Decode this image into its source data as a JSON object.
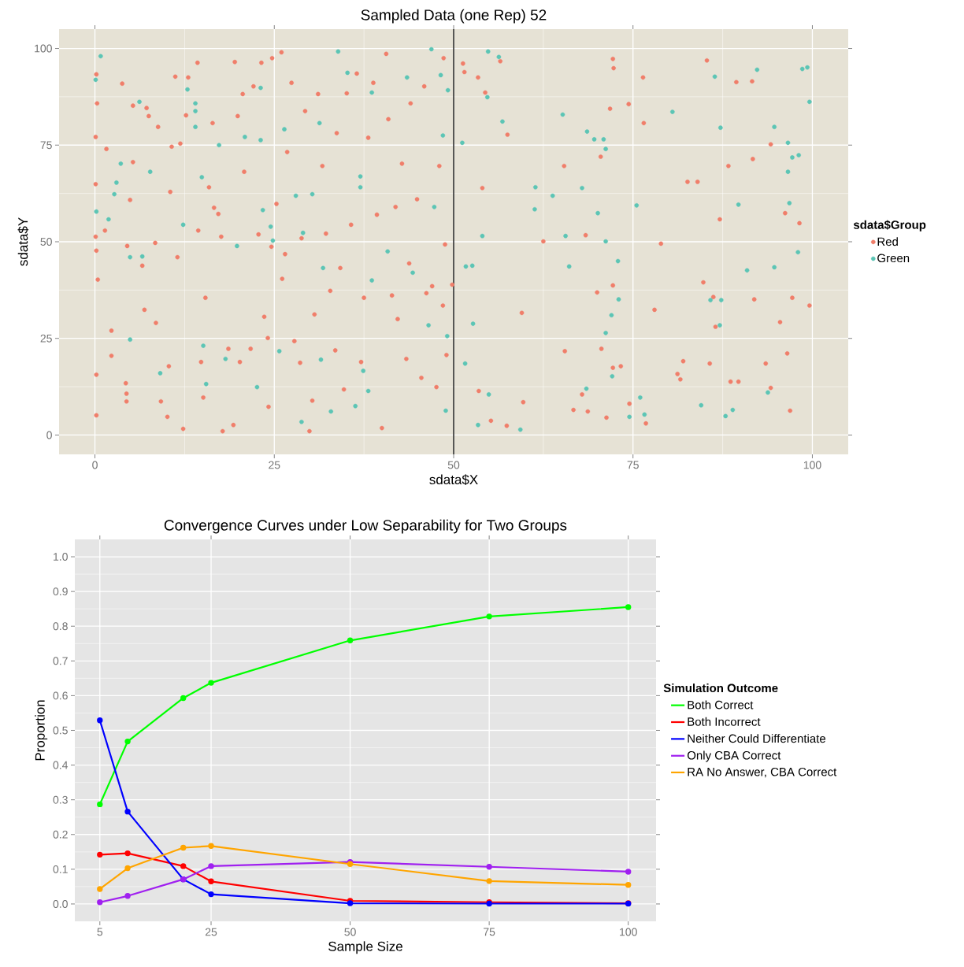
{
  "chart_data": [
    {
      "type": "scatter",
      "title": "Sampled Data (one Rep) 52",
      "xlabel": "sdata$X",
      "ylabel": "sdata$Y",
      "legend_title": "sdata$Group",
      "xlim": [
        -5,
        105
      ],
      "ylim": [
        -5,
        105
      ],
      "xticks": [
        0,
        25,
        50,
        75,
        100
      ],
      "yticks": [
        0,
        25,
        50,
        75,
        100
      ],
      "grid": true,
      "legend": "right",
      "marker": "circle",
      "ref_lines": [
        {
          "axis": "x",
          "value": 50,
          "color": "#000000"
        }
      ],
      "series": [
        {
          "name": "Red",
          "color": "#f07e6a",
          "x": [
            0.2,
            0.3,
            0.1,
            0.1,
            0.1,
            0.2,
            0.4,
            0.2,
            0.2,
            1.4,
            1.6,
            2.3,
            2.3,
            4.3,
            4.4,
            4.4,
            4.5,
            4.9,
            3.8,
            5.3,
            5.3,
            7.2,
            7.5,
            6.6,
            6.9,
            8.5,
            8.4,
            8.8,
            9.2,
            10.1,
            10.3,
            10.5,
            10.7,
            11.2,
            11.5,
            11.9,
            12.3,
            12.7,
            13.0,
            14.3,
            14.4,
            14.8,
            15.1,
            15.4,
            15.9,
            16.4,
            16.6,
            17.2,
            17.6,
            17.8,
            18.6,
            19.3,
            19.5,
            19.9,
            20.2,
            20.6,
            20.8,
            21.7,
            22.1,
            22.8,
            23.2,
            23.6,
            24.1,
            24.2,
            24.6,
            24.7,
            25.3,
            26.0,
            26.1,
            26.5,
            26.8,
            27.4,
            27.8,
            28.6,
            28.8,
            29.3,
            29.9,
            30.3,
            30.6,
            31.1,
            31.7,
            32.2,
            32.8,
            33.5,
            33.7,
            34.2,
            34.7,
            35.1,
            35.7,
            36.5,
            37.1,
            37.5,
            38.1,
            38.8,
            39.3,
            40.0,
            40.6,
            40.9,
            41.4,
            41.9,
            42.2,
            42.8,
            43.4,
            43.8,
            44.0,
            44.9,
            45.5,
            45.9,
            46.2,
            47.0,
            47.6,
            48.0,
            48.6,
            48.8,
            49.0,
            48.5,
            49.8,
            51.3,
            51.5,
            53.4,
            54.4,
            56.5,
            57.5,
            54.0,
            53.5,
            55.2,
            57.4,
            59.5,
            59.7,
            62.5,
            65.4,
            65.5,
            66.7,
            67.9,
            68.4,
            68.7,
            70.0,
            70.5,
            70.6,
            71.3,
            71.8,
            72.2,
            72.3,
            72.2,
            72.2,
            73.3,
            74.4,
            74.5,
            76.4,
            76.5,
            76.8,
            78.0,
            78.9,
            81.2,
            81.6,
            82.0,
            82.6,
            84.0,
            84.8,
            85.3,
            85.7,
            86.2,
            86.5,
            87.1,
            88.3,
            88.6,
            89.7,
            89.4,
            91.6,
            91.7,
            91.9,
            93.5,
            94.2,
            94.2,
            95.5,
            96.2,
            96.5,
            96.9,
            97.2,
            98.2,
            99.6
          ],
          "values": [
            93.3,
            85.8,
            77.1,
            64.9,
            51.3,
            47.7,
            40.2,
            15.6,
            5.1,
            52.9,
            74.0,
            27.0,
            20.5,
            13.4,
            10.7,
            8.7,
            48.9,
            60.8,
            90.9,
            85.2,
            70.6,
            84.6,
            82.5,
            43.8,
            32.4,
            29.0,
            49.7,
            79.7,
            8.7,
            4.7,
            17.8,
            62.9,
            74.6,
            92.7,
            46.0,
            75.4,
            1.6,
            82.7,
            92.5,
            96.3,
            52.9,
            18.9,
            9.7,
            35.5,
            64.1,
            80.7,
            58.8,
            57.2,
            51.3,
            1.0,
            22.3,
            2.6,
            96.5,
            82.5,
            18.9,
            88.2,
            68.1,
            22.3,
            90.2,
            51.9,
            96.3,
            30.6,
            25.1,
            7.3,
            48.7,
            97.5,
            59.8,
            99.0,
            40.4,
            46.8,
            73.2,
            91.1,
            24.3,
            18.7,
            50.9,
            83.8,
            1.0,
            8.9,
            31.2,
            88.2,
            69.6,
            52.1,
            37.3,
            21.9,
            78.1,
            43.2,
            11.8,
            88.4,
            54.4,
            93.5,
            18.9,
            35.5,
            76.9,
            91.1,
            57.0,
            1.8,
            98.6,
            81.7,
            36.1,
            59.0,
            30.0,
            70.2,
            19.7,
            44.4,
            85.8,
            61.0,
            14.8,
            90.2,
            36.7,
            38.5,
            12.4,
            69.6,
            97.5,
            49.3,
            20.7,
            33.5,
            38.9,
            96.1,
            93.9,
            92.5,
            88.6,
            96.7,
            77.7,
            63.9,
            11.4,
            3.7,
            2.4,
            31.6,
            8.5,
            50.1,
            69.6,
            21.7,
            6.5,
            10.5,
            51.7,
            6.1,
            36.9,
            72.0,
            22.3,
            4.5,
            84.4,
            97.3,
            94.9,
            38.7,
            17.4,
            17.8,
            85.6,
            8.1,
            92.5,
            80.7,
            3.0,
            32.4,
            49.5,
            15.8,
            14.4,
            19.1,
            65.5,
            65.5,
            39.5,
            96.9,
            18.5,
            35.7,
            28.0,
            55.8,
            69.6,
            13.8,
            13.8,
            91.3,
            91.5,
            71.4,
            35.1,
            18.5,
            75.2,
            12.2,
            29.2,
            57.4,
            21.1,
            6.3,
            35.5,
            54.8,
            33.5
          ]
        },
        {
          "name": "Green",
          "color": "#5cc5b5",
          "x": [
            0.8,
            0.1,
            3.0,
            1.9,
            0.2,
            3.6,
            2.7,
            4.9,
            4.9,
            6.2,
            7.7,
            6.6,
            9.1,
            12.3,
            12.9,
            14.0,
            14.0,
            14.0,
            14.9,
            15.1,
            15.5,
            17.3,
            18.2,
            19.8,
            20.9,
            22.6,
            23.1,
            23.1,
            23.4,
            24.5,
            24.8,
            25.7,
            26.4,
            28.0,
            28.8,
            29.0,
            30.3,
            31.3,
            31.5,
            31.8,
            32.9,
            33.9,
            35.2,
            36.3,
            37.0,
            37.0,
            37.4,
            38.1,
            38.6,
            38.6,
            40.8,
            43.5,
            44.3,
            46.5,
            46.9,
            47.3,
            48.2,
            48.5,
            48.9,
            49.1,
            49.2,
            51.2,
            54.0,
            51.7,
            52.6,
            54.7,
            54.8,
            56.3,
            56.8,
            52.7,
            51.6,
            53.4,
            54.9,
            59.3,
            61.4,
            61.3,
            63.8,
            65.2,
            65.6,
            66.1,
            67.9,
            68.5,
            68.6,
            69.6,
            70.1,
            70.9,
            71.2,
            71.2,
            71.2,
            72.0,
            72.9,
            73.0,
            72.1,
            74.5,
            76.0,
            75.5,
            76.6,
            80.5,
            84.5,
            86.4,
            85.8,
            87.3,
            87.2,
            87.1,
            88.9,
            87.9,
            89.7,
            90.9,
            92.3,
            93.8,
            94.7,
            94.7,
            96.6,
            96.6,
            96.8,
            97.2,
            98.1,
            98.0,
            98.6,
            99.3,
            99.6
          ],
          "values": [
            98.0,
            91.9,
            65.3,
            55.8,
            57.8,
            70.2,
            62.3,
            24.7,
            46.0,
            86.2,
            68.1,
            46.2,
            16.0,
            54.4,
            89.4,
            85.8,
            83.8,
            79.7,
            66.7,
            23.1,
            13.2,
            75.0,
            19.7,
            48.9,
            77.1,
            12.4,
            89.8,
            76.3,
            58.2,
            53.9,
            50.3,
            21.7,
            79.1,
            61.9,
            3.4,
            52.3,
            62.3,
            80.7,
            19.5,
            43.2,
            6.1,
            99.2,
            93.7,
            7.5,
            66.9,
            64.1,
            16.6,
            11.4,
            88.6,
            40.0,
            47.5,
            92.5,
            42.0,
            28.4,
            99.8,
            59.0,
            93.1,
            77.5,
            6.3,
            25.6,
            89.2,
            75.6,
            51.5,
            43.6,
            43.8,
            87.4,
            99.2,
            97.8,
            81.1,
            28.8,
            18.5,
            2.6,
            10.5,
            1.4,
            64.1,
            58.4,
            61.9,
            82.9,
            51.5,
            43.6,
            63.9,
            12.0,
            78.5,
            76.5,
            57.4,
            76.5,
            74.0,
            50.1,
            26.4,
            31.0,
            45.0,
            35.1,
            15.2,
            4.7,
            9.7,
            59.4,
            5.3,
            83.6,
            7.7,
            92.7,
            34.9,
            34.9,
            79.5,
            28.4,
            6.5,
            4.9,
            59.6,
            42.6,
            94.5,
            11.0,
            79.7,
            43.4,
            75.6,
            68.1,
            60.0,
            71.8,
            72.4,
            47.3,
            94.7,
            95.1,
            86.2
          ]
        }
      ]
    },
    {
      "type": "line",
      "title": "Convergence Curves under Low Separability for Two Groups",
      "xlabel": "Sample Size",
      "ylabel": "Proportion",
      "legend_title": "Simulation Outcome",
      "x": [
        5,
        10,
        20,
        25,
        50,
        75,
        100
      ],
      "xlim": [
        0.5,
        105
      ],
      "ylim": [
        -0.05,
        1.05
      ],
      "xticks": [
        5,
        25,
        50,
        75,
        100
      ],
      "yticks": [
        {
          "value": 0,
          "label": "0.0"
        },
        {
          "value": 0.1,
          "label": "0.1"
        },
        {
          "value": 0.2,
          "label": "0.2"
        },
        {
          "value": 0.3,
          "label": "0.3"
        },
        {
          "value": 0.4,
          "label": "0.4"
        },
        {
          "value": 0.5,
          "label": "0.5"
        },
        {
          "value": 0.6,
          "label": "0.6"
        },
        {
          "value": 0.7,
          "label": "0.7"
        },
        {
          "value": 0.8,
          "label": "0.8"
        },
        {
          "value": 0.9,
          "label": "0.9"
        },
        {
          "value": 1,
          "label": "1.0"
        }
      ],
      "grid": true,
      "legend": "right",
      "marker": "circle",
      "series": [
        {
          "name": "Both Correct",
          "color": "#00ff00",
          "values": [
            0.287,
            0.468,
            0.593,
            0.637,
            0.759,
            0.828,
            0.855
          ]
        },
        {
          "name": "Both Incorrect",
          "color": "#ff0000",
          "values": [
            0.142,
            0.146,
            0.109,
            0.065,
            0.009,
            0.005,
            0.002
          ]
        },
        {
          "name": "Neither Could Differentiate",
          "color": "#0000ff",
          "values": [
            0.529,
            0.266,
            0.071,
            0.028,
            0.002,
            0.001,
            0.001
          ]
        },
        {
          "name": "Only CBA Correct",
          "color": "#a020f0",
          "values": [
            0.005,
            0.023,
            0.071,
            0.109,
            0.121,
            0.107,
            0.093
          ]
        },
        {
          "name": "RA No Answer, CBA Correct",
          "color": "#ffa500",
          "values": [
            0.043,
            0.103,
            0.162,
            0.167,
            0.115,
            0.066,
            0.055
          ]
        }
      ]
    }
  ]
}
